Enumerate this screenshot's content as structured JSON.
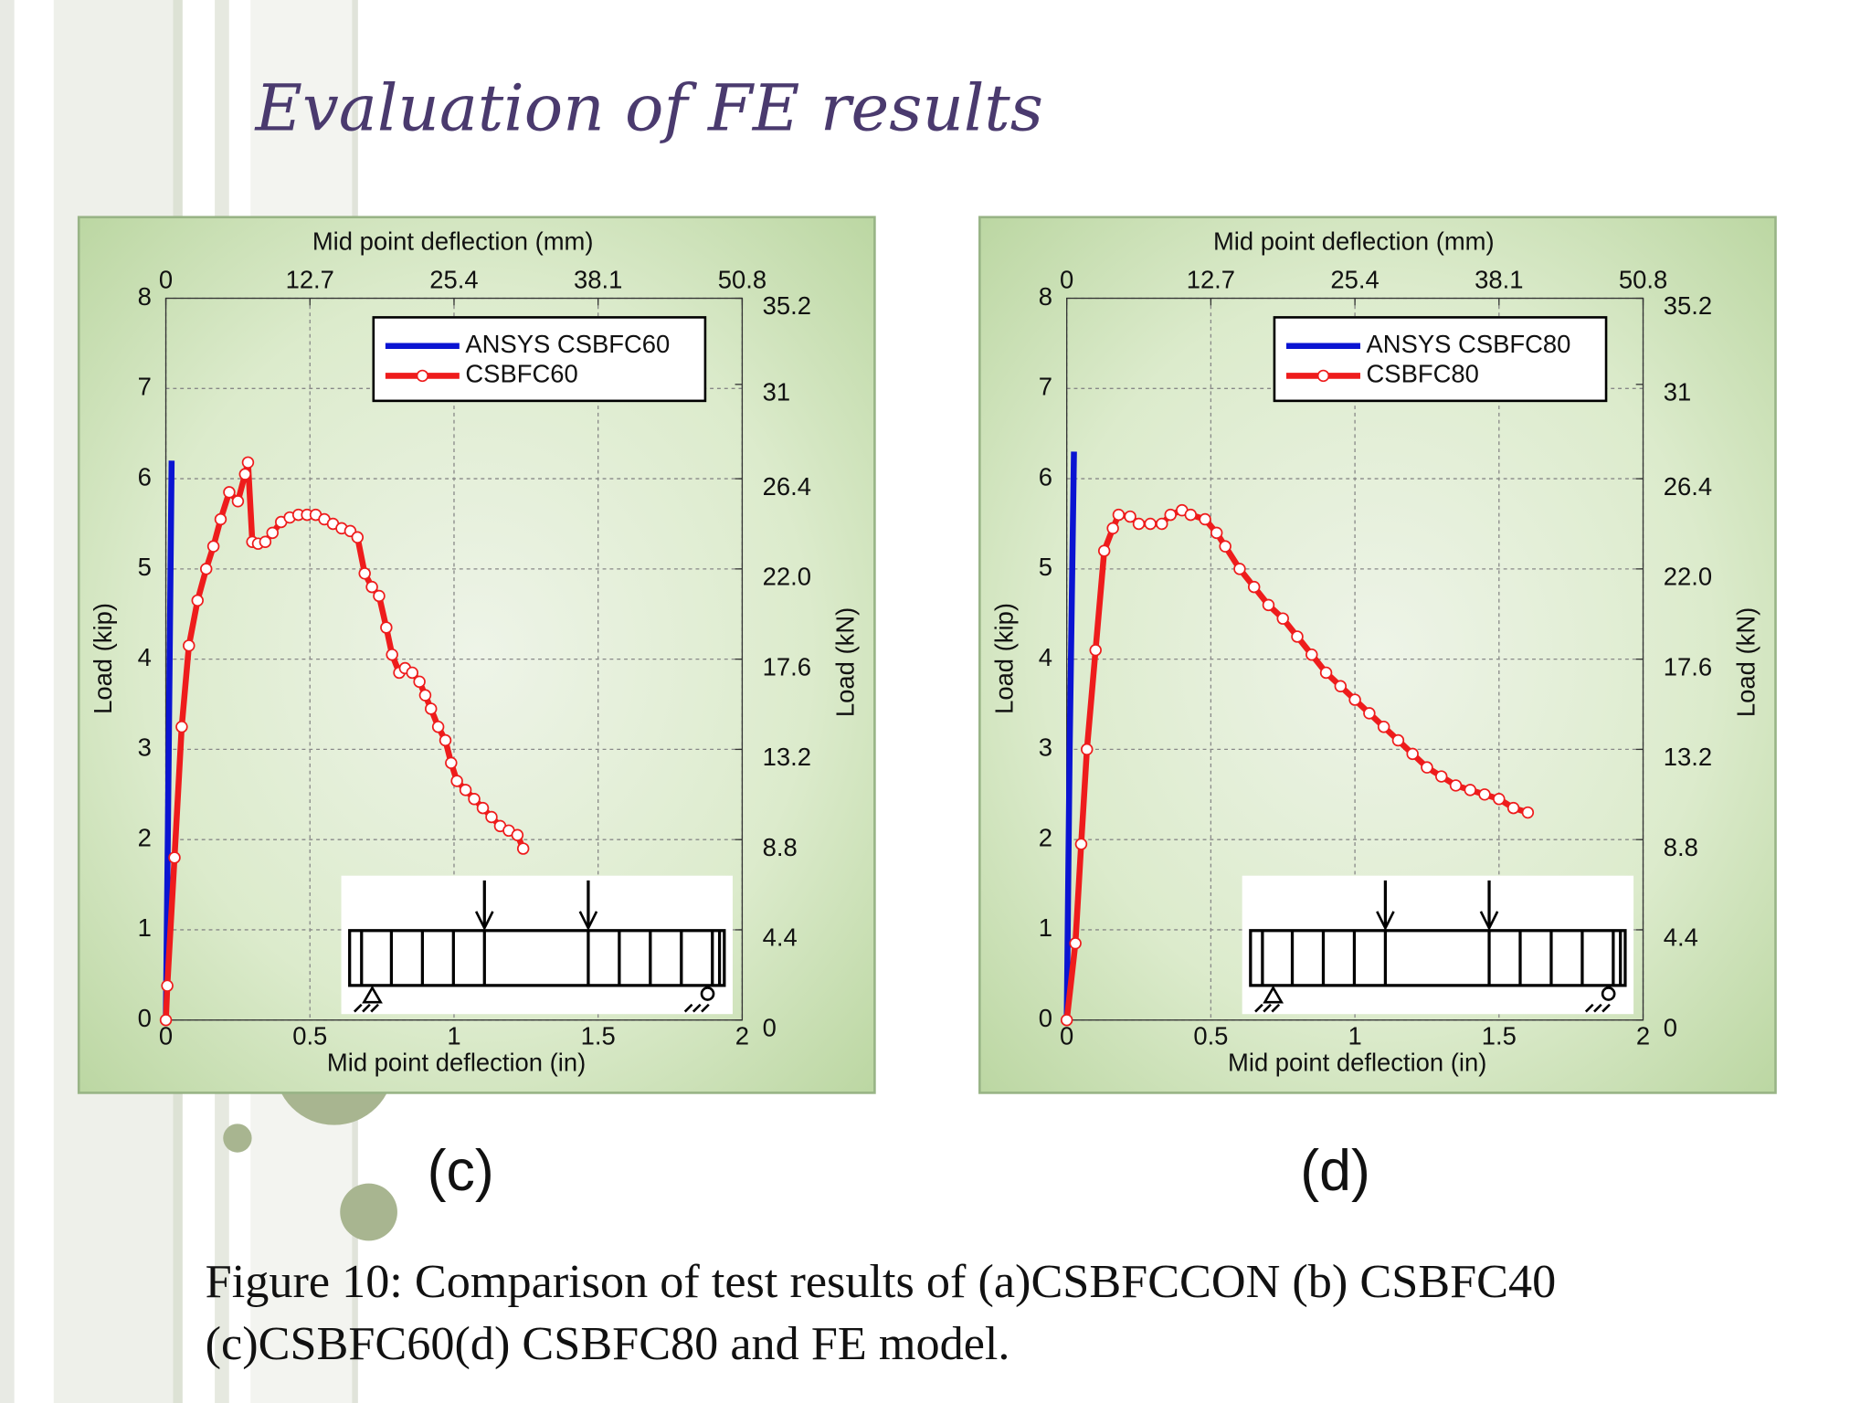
{
  "slide": {
    "title": "Evaluation of FE results",
    "caption_lines": [
      "Figure 10: Comparison of test results of (a)CSBFCCON (b) CSBFC40",
      "(c)CSBFC60(d) CSBFC80 and FE model."
    ]
  },
  "chart_data": [
    {
      "type": "line",
      "panel_label": "(c)",
      "xlabel": "Mid point deflection (in)",
      "x2label": "Mid point deflection (mm)",
      "ylabel": "Load (kip)",
      "y2label": "Load (kN)",
      "xlim": [
        0,
        2
      ],
      "xticks": [
        0,
        0.5,
        1,
        1.5,
        2
      ],
      "x2lim": [
        0,
        50.8
      ],
      "x2ticks": [
        0,
        12.7,
        25.4,
        38.1,
        50.8
      ],
      "ylim": [
        0,
        8
      ],
      "yticks": [
        0,
        1,
        2,
        3,
        4,
        5,
        6,
        7,
        8
      ],
      "y2lim": [
        0,
        35.2
      ],
      "y2ticks": [
        0,
        4.4,
        8.8,
        13.2,
        17.6,
        {
          "value": 22,
          "label": "22.0"
        },
        26.4,
        31,
        35.2
      ],
      "grid": true,
      "legend": "upper right",
      "series": [
        {
          "name": "ANSYS CSBFC60",
          "color": "#0a14d2",
          "marker": "none",
          "x": [
            0,
            0.01,
            0.02
          ],
          "values": [
            0,
            3,
            6.2
          ]
        },
        {
          "name": "CSBFC60",
          "color": "#ee1c1c",
          "marker": "circle",
          "x": [
            0,
            0.005,
            0.03,
            0.055,
            0.08,
            0.11,
            0.14,
            0.165,
            0.19,
            0.22,
            0.25,
            0.275,
            0.285,
            0.3,
            0.32,
            0.345,
            0.37,
            0.4,
            0.43,
            0.46,
            0.49,
            0.52,
            0.55,
            0.58,
            0.61,
            0.64,
            0.665,
            0.69,
            0.715,
            0.74,
            0.765,
            0.785,
            0.81,
            0.83,
            0.855,
            0.88,
            0.9,
            0.92,
            0.945,
            0.97,
            0.99,
            1.01,
            1.04,
            1.07,
            1.1,
            1.13,
            1.16,
            1.19,
            1.22,
            1.24
          ],
          "values": [
            0,
            0.38,
            1.8,
            3.25,
            4.15,
            4.65,
            5.0,
            5.25,
            5.55,
            5.85,
            5.75,
            6.05,
            6.18,
            5.3,
            5.28,
            5.3,
            5.4,
            5.52,
            5.57,
            5.6,
            5.6,
            5.6,
            5.55,
            5.5,
            5.45,
            5.42,
            5.35,
            4.95,
            4.8,
            4.7,
            4.35,
            4.05,
            3.85,
            3.9,
            3.85,
            3.75,
            3.6,
            3.45,
            3.25,
            3.1,
            2.85,
            2.65,
            2.55,
            2.45,
            2.35,
            2.25,
            2.15,
            2.1,
            2.05,
            1.9
          ]
        }
      ]
    },
    {
      "type": "line",
      "panel_label": "(d)",
      "xlabel": "Mid point deflection (in)",
      "x2label": "Mid point deflection (mm)",
      "ylabel": "Load (kip)",
      "y2label": "Load (kN)",
      "xlim": [
        0,
        2
      ],
      "xticks": [
        0,
        0.5,
        1,
        1.5,
        2
      ],
      "x2lim": [
        0,
        50.8
      ],
      "x2ticks": [
        0,
        12.7,
        25.4,
        38.1,
        50.8
      ],
      "ylim": [
        0,
        8
      ],
      "yticks": [
        0,
        1,
        2,
        3,
        4,
        5,
        6,
        7,
        8
      ],
      "y2lim": [
        0,
        35.2
      ],
      "y2ticks": [
        0,
        4.4,
        8.8,
        13.2,
        17.6,
        {
          "value": 22,
          "label": "22.0"
        },
        26.4,
        31,
        35.2
      ],
      "grid": true,
      "legend": "upper right",
      "series": [
        {
          "name": "ANSYS CSBFC80",
          "color": "#0a14d2",
          "marker": "none",
          "x": [
            0,
            0.01,
            0.025
          ],
          "values": [
            0,
            3,
            6.3
          ]
        },
        {
          "name": "CSBFC80",
          "color": "#ee1c1c",
          "marker": "circle",
          "x": [
            0,
            0.03,
            0.05,
            0.07,
            0.1,
            0.13,
            0.16,
            0.18,
            0.22,
            0.25,
            0.29,
            0.33,
            0.36,
            0.4,
            0.43,
            0.48,
            0.52,
            0.55,
            0.6,
            0.65,
            0.7,
            0.75,
            0.8,
            0.85,
            0.9,
            0.95,
            1.0,
            1.05,
            1.1,
            1.15,
            1.2,
            1.25,
            1.3,
            1.35,
            1.4,
            1.45,
            1.5,
            1.55,
            1.6
          ],
          "values": [
            0,
            0.85,
            1.95,
            3.0,
            4.1,
            5.2,
            5.45,
            5.6,
            5.58,
            5.5,
            5.5,
            5.5,
            5.6,
            5.65,
            5.6,
            5.55,
            5.4,
            5.25,
            5.0,
            4.8,
            4.6,
            4.45,
            4.25,
            4.05,
            3.85,
            3.7,
            3.55,
            3.4,
            3.25,
            3.1,
            2.95,
            2.8,
            2.7,
            2.6,
            2.55,
            2.5,
            2.45,
            2.35,
            2.3
          ]
        }
      ]
    }
  ]
}
